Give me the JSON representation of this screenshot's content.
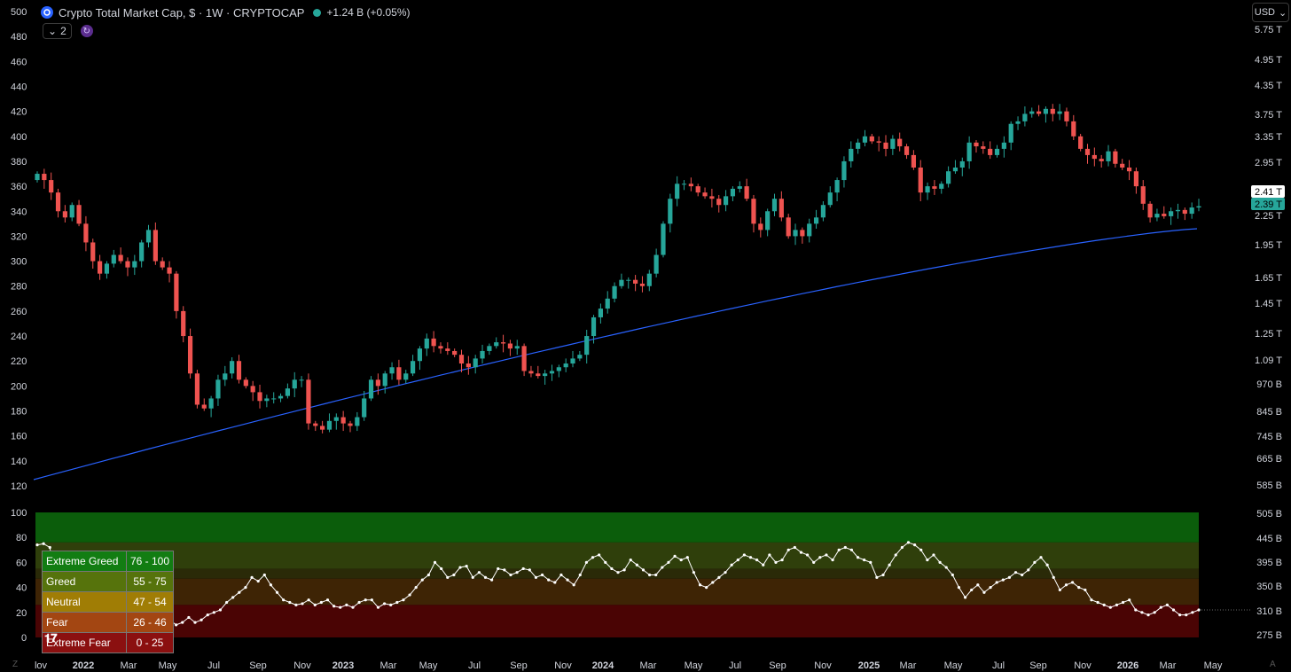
{
  "header": {
    "title": "Crypto Total Market Cap, $ · 1W · CRYPTOCAP",
    "change": "+1.24 B (+0.05%)",
    "collapse_count": "2",
    "currency": "USD"
  },
  "colors": {
    "up": "#26a69a",
    "down": "#ef5350",
    "ma_line": "#2962ff",
    "fgi_line": "#ffffff",
    "price_tag_dark": "#ffffff",
    "price_tag_green": "#26a69a"
  },
  "corner_labels": {
    "left": "Z",
    "right": "A"
  },
  "chart_data": [
    {
      "type": "candlestick",
      "title": "Crypto Total Market Cap, $ · 1W · CRYPTOCAP",
      "left_axis": {
        "ticks": [
          120,
          140,
          160,
          180,
          200,
          220,
          240,
          260,
          280,
          300,
          320,
          340,
          360,
          380,
          400,
          420,
          440,
          460,
          480,
          500
        ]
      },
      "right_axis_ticks": [
        "5.75 T",
        "4.95 T",
        "4.35 T",
        "3.75 T",
        "3.35 T",
        "2.95 T",
        "2.25 T",
        "1.95 T",
        "1.65 T",
        "1.45 T",
        "1.25 T",
        "1.09 T",
        "970 B",
        "845 B",
        "745 B",
        "665 B",
        "585 B"
      ],
      "right_axis_ticks_lower": [
        "505 B",
        "445 B",
        "395 B",
        "350 B",
        "310 B",
        "275 B"
      ],
      "price_tags": [
        "2.41 T",
        "2.39 T"
      ],
      "x_labels": [
        "lov",
        "2022",
        "Mar",
        "May",
        "Jul",
        "Sep",
        "Nov",
        "2023",
        "Mar",
        "May",
        "Jul",
        "Sep",
        "Nov",
        "2024",
        "Mar",
        "May",
        "Jul",
        "Sep",
        "Nov",
        "2025",
        "Mar",
        "May",
        "Jul",
        "Sep",
        "Nov",
        "2026",
        "Mar",
        "May"
      ],
      "closes_left_scale": [
        370,
        365,
        355,
        340,
        335,
        345,
        330,
        315,
        300,
        290,
        298,
        305,
        300,
        295,
        300,
        315,
        325,
        300,
        295,
        290,
        260,
        240,
        210,
        185,
        182,
        190,
        205,
        210,
        220,
        205,
        200,
        195,
        188,
        190,
        190,
        192,
        198,
        205,
        205,
        170,
        168,
        165,
        172,
        175,
        170,
        168,
        175,
        190,
        205,
        200,
        210,
        215,
        205,
        210,
        220,
        230,
        238,
        232,
        230,
        228,
        225,
        218,
        215,
        222,
        228,
        232,
        235,
        234,
        230,
        232,
        212,
        210,
        208,
        210,
        212,
        215,
        218,
        222,
        225,
        240,
        255,
        262,
        270,
        280,
        285,
        285,
        282,
        280,
        290,
        305,
        330,
        350,
        362,
        362,
        360,
        355,
        352,
        350,
        345,
        352,
        358,
        360,
        350,
        330,
        325,
        340,
        350,
        335,
        320,
        325,
        320,
        330,
        335,
        345,
        355,
        365,
        380,
        390,
        395,
        400,
        396,
        395,
        390,
        398,
        392,
        385,
        375,
        355,
        360,
        358,
        362,
        372,
        375,
        380,
        395,
        392,
        390,
        385,
        390,
        395,
        410,
        412,
        418,
        420,
        418,
        422,
        418,
        420,
        412,
        400,
        390,
        385,
        382,
        380,
        388,
        378,
        375,
        372,
        360,
        346,
        335,
        338,
        336,
        340,
        341,
        338,
        343,
        344
      ],
      "ma_left_scale_start": 125,
      "ma_left_scale_end": 326
    },
    {
      "type": "line",
      "title": "",
      "ylim": [
        0,
        100
      ],
      "left_axis_ticks": [
        0,
        20,
        40,
        60,
        80,
        100
      ],
      "zones": [
        {
          "label": "Extreme Greed",
          "range": "76 - 100",
          "from": 76,
          "to": 100,
          "color": "#0b5d0b"
        },
        {
          "label": "Greed",
          "range": "55 - 75",
          "from": 55,
          "to": 75,
          "color": "#2f3f0b"
        },
        {
          "label": "Neutral",
          "range": "47 - 54",
          "from": 47,
          "to": 54,
          "color": "#2a2a08"
        },
        {
          "label": "Fear",
          "range": "26 - 46",
          "from": 26,
          "to": 46,
          "color": "#3e2405"
        },
        {
          "label": "Extreme Fear",
          "range": "0 - 25",
          "from": 0,
          "to": 25,
          "color": "#4a0404"
        }
      ],
      "legend_swatches": [
        "#127d12",
        "#56730c",
        "#a07d05",
        "#a34612",
        "#8b1010"
      ],
      "values": [
        74,
        75,
        72,
        42,
        30,
        15,
        25,
        40,
        20,
        10,
        15,
        13,
        17,
        12,
        10,
        8,
        12,
        15,
        14,
        18,
        25,
        14,
        10,
        12,
        16,
        12,
        14,
        18,
        20,
        22,
        28,
        32,
        36,
        40,
        48,
        45,
        50,
        42,
        36,
        30,
        28,
        26,
        27,
        30,
        26,
        28,
        30,
        25,
        24,
        26,
        24,
        28,
        30,
        30,
        24,
        27,
        26,
        28,
        30,
        34,
        40,
        46,
        50,
        60,
        55,
        48,
        50,
        56,
        57,
        48,
        52,
        48,
        46,
        55,
        54,
        50,
        52,
        55,
        54,
        48,
        50,
        46,
        44,
        50,
        46,
        42,
        50,
        60,
        64,
        66,
        60,
        55,
        52,
        54,
        62,
        58,
        54,
        50,
        50,
        56,
        60,
        65,
        62,
        64,
        52,
        42,
        40,
        44,
        48,
        52,
        58,
        62,
        66,
        64,
        62,
        58,
        66,
        60,
        62,
        70,
        72,
        68,
        66,
        60,
        64,
        66,
        62,
        70,
        72,
        70,
        64,
        62,
        60,
        48,
        50,
        58,
        66,
        72,
        76,
        74,
        70,
        62,
        66,
        60,
        56,
        50,
        40,
        32,
        38,
        42,
        36,
        40,
        44,
        46,
        48,
        52,
        50,
        54,
        60,
        64,
        58,
        48,
        38,
        42,
        44,
        40,
        38,
        30,
        28,
        26,
        24,
        26,
        28,
        30,
        22,
        20,
        18,
        20,
        24,
        26,
        22,
        18,
        18,
        20,
        22
      ],
      "values_note_free": true
    }
  ]
}
